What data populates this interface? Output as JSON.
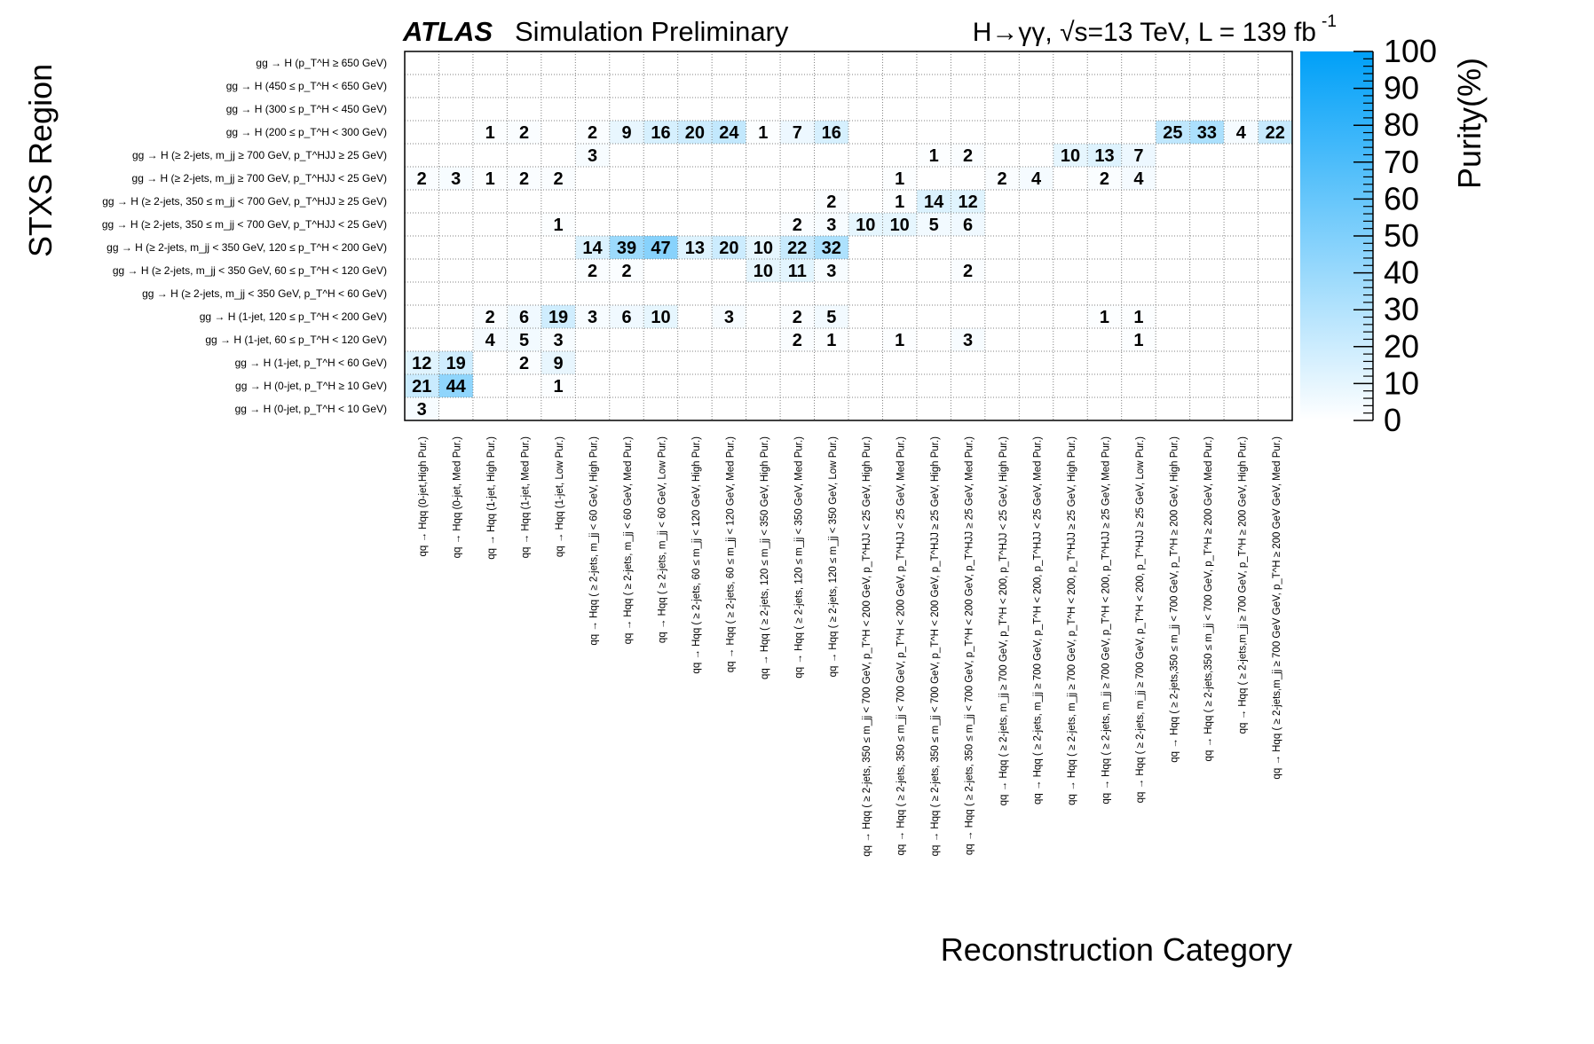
{
  "header": {
    "experiment": "ATLAS",
    "status": "Simulation Preliminary",
    "process": "H→γγ,  √s=13 TeV, L = 139 fb",
    "lumi_exponent": "-1"
  },
  "chart_data": {
    "type": "heatmap",
    "xlabel": "Reconstruction Category",
    "ylabel": "STXS Region",
    "zlabel": "Purity(%)",
    "zlim": [
      0,
      100
    ],
    "colorbar_ticks": [
      "0",
      "10",
      "20",
      "30",
      "40",
      "50",
      "60",
      "70",
      "80",
      "90",
      "100"
    ],
    "colors": {
      "low": "#ffffff",
      "high": "#00a0f8",
      "dotted_grid": "#808080"
    },
    "x_categories": [
      "qq → Hqq (0-jet,High Pur.)",
      "qq → Hqq (0-jet, Med  Pur.)",
      "qq → Hqq (1-jet, High Pur.)",
      "qq → Hqq (1-jet, Med  Pur.)",
      "qq → Hqq (1-jet, Low  Pur.)",
      "qq → Hqq ( ≥ 2-jets, m_jj < 60 GeV, High Pur.)",
      "qq → Hqq ( ≥ 2-jets, m_jj < 60 GeV, Med  Pur.)",
      "qq → Hqq ( ≥ 2-jets, m_jj < 60 GeV, Low  Pur.)",
      "qq → Hqq ( ≥ 2-jets, 60 ≤ m_jj < 120 GeV, High Pur.)",
      "qq → Hqq ( ≥ 2-jets, 60 ≤ m_jj < 120 GeV, Med  Pur.)",
      "qq → Hqq ( ≥ 2-jets, 120 ≤ m_jj < 350 GeV, High Pur.)",
      "qq → Hqq ( ≥ 2-jets, 120 ≤ m_jj < 350 GeV, Med  Pur.)",
      "qq → Hqq ( ≥ 2-jets, 120 ≤ m_jj < 350 GeV, Low  Pur.)",
      "qq → Hqq ( ≥ 2-jets, 350 ≤ m_jj < 700 GeV, p_T^H < 200 GeV, p_T^HJJ < 25 GeV, High Pur.)",
      "qq → Hqq ( ≥ 2-jets, 350 ≤ m_jj < 700 GeV, p_T^H < 200 GeV, p_T^HJJ < 25 GeV, Med  Pur.)",
      "qq → Hqq ( ≥ 2-jets, 350 ≤ m_jj < 700 GeV, p_T^H < 200 GeV, p_T^HJJ ≥ 25 GeV, High Pur.)",
      "qq → Hqq ( ≥ 2-jets, 350 ≤ m_jj < 700 GeV, p_T^H < 200 GeV, p_T^HJJ ≥ 25 GeV, Med  Pur.)",
      "qq → Hqq ( ≥ 2-jets, m_jj ≥ 700 GeV, p_T^H < 200, p_T^HJJ < 25 GeV, High Pur.)",
      "qq → Hqq ( ≥ 2-jets, m_jj ≥ 700 GeV, p_T^H < 200, p_T^HJJ < 25 GeV, Med  Pur.)",
      "qq → Hqq ( ≥ 2-jets, m_jj ≥ 700 GeV, p_T^H < 200, p_T^HJJ ≥ 25 GeV, High Pur.)",
      "qq → Hqq ( ≥ 2-jets, m_jj ≥ 700 GeV, p_T^H < 200, p_T^HJJ ≥ 25 GeV, Med  Pur.)",
      "qq → Hqq ( ≥ 2-jets, m_jj ≥ 700 GeV, p_T^H < 200, p_T^HJJ ≥ 25 GeV, Low Pur.)",
      "qq → Hqq ( ≥ 2-jets,350 ≤ m_jj < 700 GeV, p_T^H ≥ 200 GeV, High Pur.)",
      "qq → Hqq ( ≥ 2-jets,350 ≤ m_jj < 700 GeV, p_T^H ≥ 200 GeV, Med  Pur.)",
      "qq → Hqq ( ≥ 2-jets,m_jj ≥ 700 GeV, p_T^H ≥ 200 GeV, High Pur.)",
      "qq → Hqq ( ≥ 2-jets,m_jj ≥ 700 GeV GeV, p_T^H ≥ 200 GeV GeV, Med  Pur.)"
    ],
    "y_categories": [
      "gg → H (p_T^H ≥ 650 GeV)",
      "gg → H (450 ≤ p_T^H < 650 GeV)",
      "gg → H (300 ≤ p_T^H < 450 GeV)",
      "gg → H (200 ≤ p_T^H < 300 GeV)",
      "gg → H (≥ 2-jets, m_jj ≥ 700 GeV, p_T^HJJ ≥ 25 GeV)",
      "gg → H (≥ 2-jets, m_jj ≥ 700 GeV, p_T^HJJ < 25 GeV)",
      "gg → H (≥ 2-jets, 350 ≤ m_jj < 700 GeV, p_T^HJJ ≥ 25 GeV)",
      "gg → H (≥ 2-jets, 350 ≤ m_jj < 700 GeV, p_T^HJJ < 25 GeV)",
      "gg → H (≥ 2-jets, m_jj < 350 GeV, 120 ≤ p_T^H < 200 GeV)",
      "gg → H (≥ 2-jets, m_jj < 350 GeV, 60 ≤ p_T^H < 120 GeV)",
      "gg → H (≥ 2-jets, m_jj < 350 GeV, p_T^H < 60 GeV)",
      "gg → H (1-jet, 120 ≤ p_T^H < 200 GeV)",
      "gg → H (1-jet, 60 ≤ p_T^H < 120 GeV)",
      "gg → H (1-jet, p_T^H < 60 GeV)",
      "gg → H (0-jet, p_T^H ≥ 10 GeV)",
      "gg → H (0-jet, p_T^H < 10 GeV)"
    ],
    "values": [
      [
        null,
        null,
        null,
        null,
        null,
        null,
        null,
        null,
        null,
        null,
        null,
        null,
        null,
        null,
        null,
        null,
        null,
        null,
        null,
        null,
        null,
        null,
        null,
        null,
        null,
        null
      ],
      [
        null,
        null,
        null,
        null,
        null,
        null,
        null,
        null,
        null,
        null,
        null,
        null,
        null,
        null,
        null,
        null,
        null,
        null,
        null,
        null,
        null,
        null,
        null,
        null,
        null,
        null
      ],
      [
        null,
        null,
        null,
        null,
        null,
        null,
        null,
        null,
        null,
        null,
        null,
        null,
        null,
        null,
        null,
        null,
        null,
        null,
        null,
        null,
        null,
        null,
        null,
        null,
        null,
        null
      ],
      [
        null,
        null,
        1,
        2,
        null,
        2,
        9,
        16,
        20,
        24,
        1,
        7,
        16,
        null,
        null,
        null,
        null,
        null,
        null,
        null,
        null,
        null,
        25,
        33,
        4,
        22
      ],
      [
        null,
        null,
        null,
        null,
        null,
        3,
        null,
        null,
        null,
        null,
        null,
        null,
        null,
        null,
        null,
        1,
        2,
        null,
        null,
        10,
        13,
        7,
        null,
        null,
        null,
        null
      ],
      [
        2,
        3,
        1,
        2,
        2,
        null,
        null,
        null,
        null,
        null,
        null,
        null,
        null,
        null,
        1,
        null,
        null,
        2,
        4,
        null,
        2,
        4,
        null,
        null,
        null,
        null
      ],
      [
        null,
        null,
        null,
        null,
        null,
        null,
        null,
        null,
        null,
        null,
        null,
        null,
        2,
        null,
        1,
        14,
        12,
        null,
        null,
        null,
        null,
        null,
        null,
        null,
        null,
        null
      ],
      [
        null,
        null,
        null,
        null,
        1,
        null,
        null,
        null,
        null,
        null,
        null,
        2,
        3,
        10,
        10,
        5,
        6,
        null,
        null,
        null,
        null,
        null,
        null,
        null,
        null,
        null
      ],
      [
        null,
        null,
        null,
        null,
        null,
        14,
        39,
        47,
        13,
        20,
        10,
        22,
        32,
        null,
        null,
        null,
        null,
        null,
        null,
        null,
        null,
        null,
        null,
        null,
        null,
        null
      ],
      [
        null,
        null,
        null,
        null,
        null,
        2,
        2,
        null,
        null,
        null,
        10,
        11,
        3,
        null,
        null,
        null,
        2,
        null,
        null,
        null,
        null,
        null,
        null,
        null,
        null,
        null
      ],
      [
        null,
        null,
        null,
        null,
        null,
        null,
        null,
        null,
        null,
        null,
        null,
        null,
        null,
        null,
        null,
        null,
        null,
        null,
        null,
        null,
        null,
        null,
        null,
        null,
        null,
        null
      ],
      [
        null,
        null,
        2,
        6,
        19,
        3,
        6,
        10,
        null,
        3,
        null,
        2,
        5,
        null,
        null,
        null,
        null,
        null,
        null,
        null,
        1,
        1,
        null,
        null,
        null,
        null
      ],
      [
        null,
        null,
        4,
        5,
        3,
        null,
        null,
        null,
        null,
        null,
        null,
        2,
        1,
        null,
        1,
        null,
        3,
        null,
        null,
        null,
        null,
        1,
        null,
        null,
        null,
        null
      ],
      [
        12,
        19,
        null,
        2,
        9,
        null,
        null,
        null,
        null,
        null,
        null,
        null,
        null,
        null,
        null,
        null,
        null,
        null,
        null,
        null,
        null,
        null,
        null,
        null,
        null,
        null
      ],
      [
        21,
        44,
        null,
        null,
        1,
        null,
        null,
        null,
        null,
        null,
        null,
        null,
        null,
        null,
        null,
        null,
        null,
        null,
        null,
        null,
        null,
        null,
        null,
        null,
        null,
        null
      ],
      [
        3,
        null,
        null,
        null,
        null,
        null,
        null,
        null,
        null,
        null,
        null,
        null,
        null,
        null,
        null,
        null,
        null,
        null,
        null,
        null,
        null,
        null,
        null,
        null,
        null,
        null
      ]
    ]
  }
}
